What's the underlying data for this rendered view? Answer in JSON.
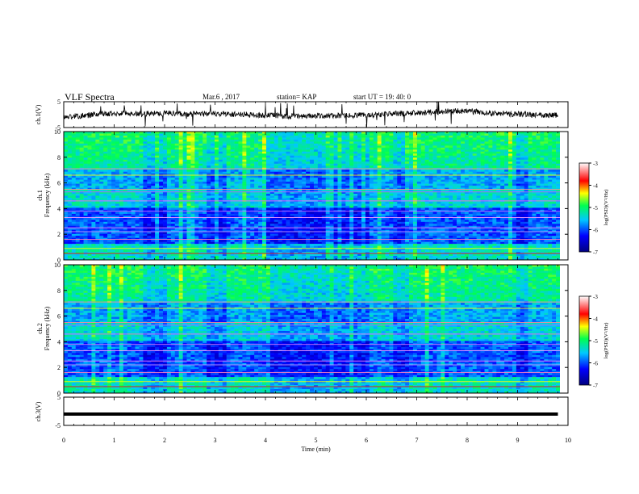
{
  "header": {
    "title": "VLF Spectra",
    "date": "Mar.6 , 2017",
    "station": "station= KAP",
    "start": "start UT = 19: 40: 0"
  },
  "chart_data": [
    {
      "type": "line",
      "panel": "ch1-waveform",
      "ylabel": "ch.1(V)",
      "ylim": [
        -5,
        5
      ],
      "yticks": [
        "5",
        "-5"
      ],
      "xlim": [
        0,
        10
      ],
      "series": [
        {
          "x": [
            0,
            0.5,
            1,
            1.5,
            2,
            2.5,
            3,
            3.5,
            4,
            4.5,
            5,
            5.5,
            6,
            6.5,
            7,
            7.5,
            8,
            8.5,
            9,
            9.5,
            9.8
          ],
          "values": [
            -1.0,
            -0.2,
            0.5,
            0.3,
            0.6,
            0.2,
            0.4,
            0.1,
            -0.3,
            -0.6,
            -0.5,
            -0.4,
            -0.2,
            0.3,
            0.6,
            1.2,
            1.5,
            0.5,
            0.2,
            -0.1,
            -0.3
          ]
        }
      ]
    },
    {
      "type": "heatmap",
      "panel": "ch1-spectrogram",
      "ylabel_top": "ch.1",
      "ylabel": "Frequency (kHz)",
      "ylim": [
        0,
        10
      ],
      "yticks": [
        "0",
        "2",
        "4",
        "6",
        "8",
        "10"
      ],
      "xlim": [
        0,
        10
      ],
      "colorbar": {
        "label": "log(PSD)(V²/Hz)",
        "ticks": [
          "-3",
          "-4",
          "-5",
          "-6",
          "-7"
        ],
        "range": [
          -7,
          -3
        ]
      }
    },
    {
      "type": "heatmap",
      "panel": "ch2-spectrogram",
      "ylabel_top": "ch.2",
      "ylabel": "Frequency (kHz)",
      "ylim": [
        0,
        10
      ],
      "yticks": [
        "0",
        "2",
        "4",
        "6",
        "8",
        "10"
      ],
      "xlim": [
        0,
        10
      ],
      "colorbar": {
        "label": "log(PSD)(V²/Hz)",
        "ticks": [
          "-3",
          "-4",
          "-5",
          "-6",
          "-7"
        ],
        "range": [
          -7,
          -3
        ]
      }
    },
    {
      "type": "line",
      "panel": "ch3-waveform",
      "ylabel": "ch.3(V)",
      "ylim": [
        -5,
        5
      ],
      "yticks": [
        "5",
        "-5"
      ],
      "xlabel": "Time (min)",
      "xticks": [
        "0",
        "1",
        "2",
        "3",
        "4",
        "5",
        "6",
        "7",
        "8",
        "9",
        "10"
      ],
      "xlim": [
        0,
        10
      ],
      "series": [
        {
          "x": [
            0,
            9.8
          ],
          "values": [
            -1.0,
            -1.0
          ]
        }
      ]
    }
  ],
  "colors": {
    "low": "#00008f",
    "mid_low": "#1060ff",
    "mid": "#30d0ff",
    "mid_high": "#30ff60",
    "high": "#ffff00",
    "peak": "#ff0000"
  }
}
